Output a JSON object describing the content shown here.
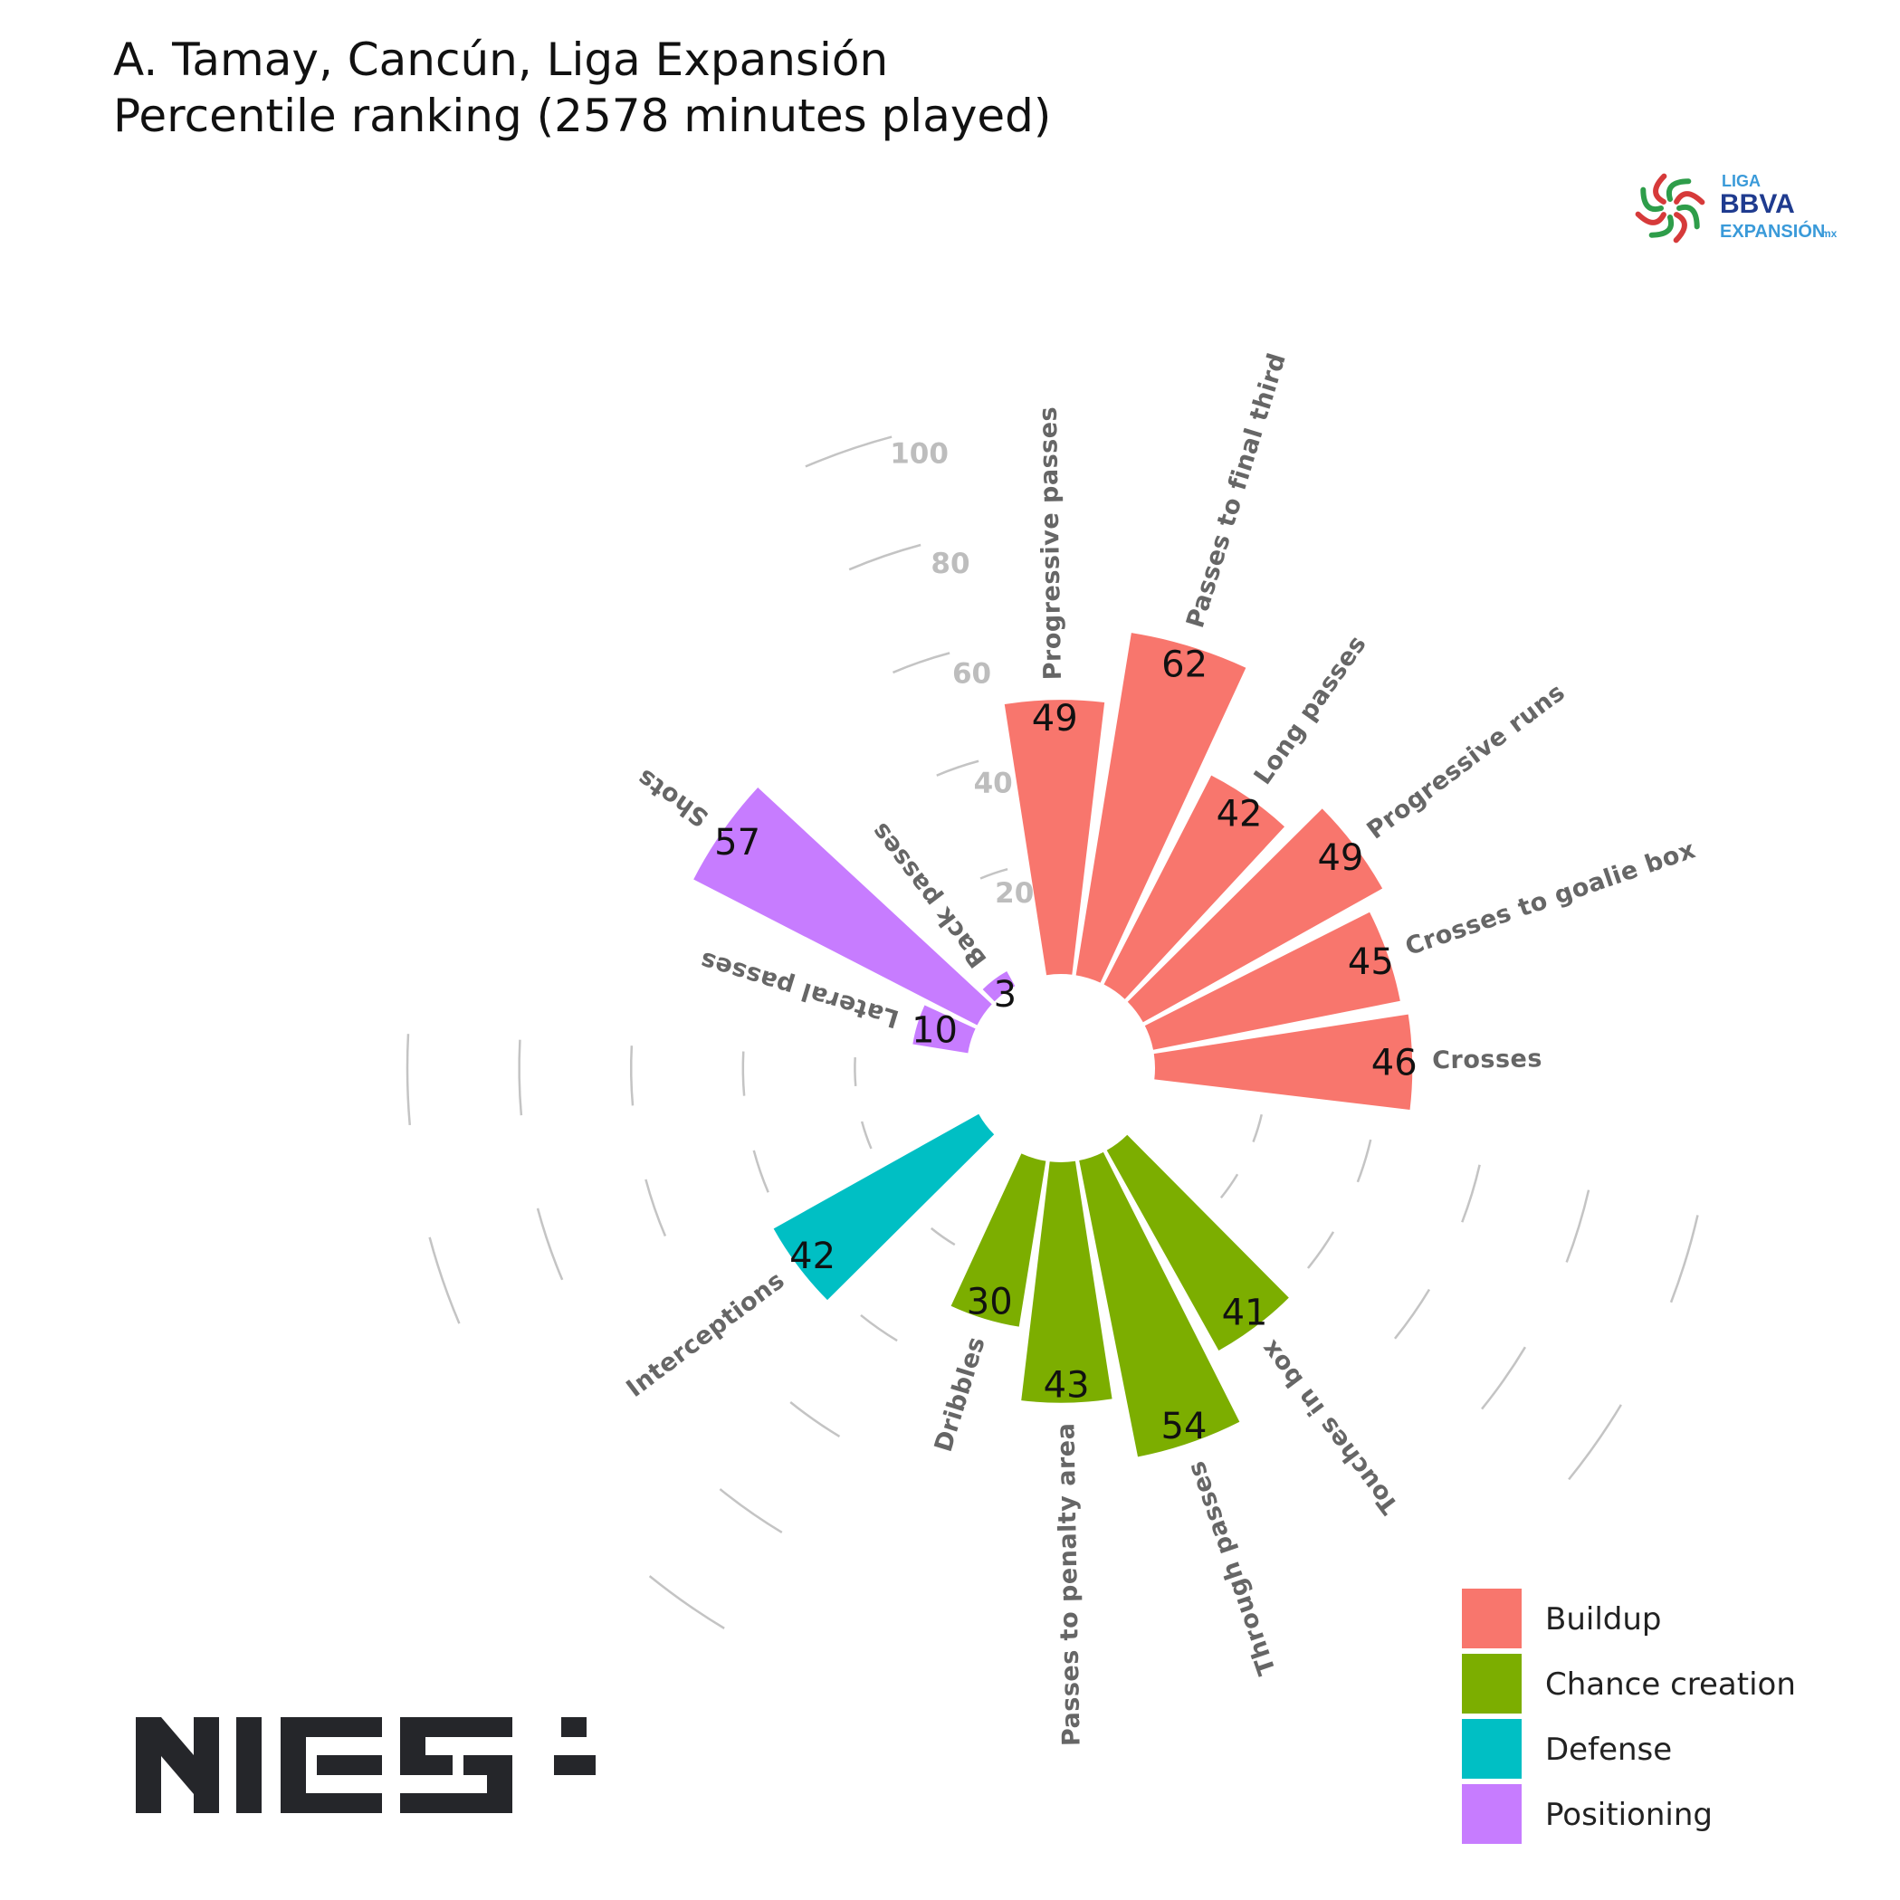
{
  "title_line1": "A. Tamay, Cancún, Liga Expansión",
  "title_line2": "Percentile ranking (2578 minutes played)",
  "league_logo": {
    "line1": "LIGA",
    "line2": "BBVA",
    "line3": "EXPANSIÓN",
    "suffix": "mx"
  },
  "brand_logo": "NIES",
  "chart_data": {
    "type": "bar",
    "subtype": "polar-percentile",
    "title": "A. Tamay, Cancún, Liga Expansión",
    "subtitle": "Percentile ranking (2578 minutes played)",
    "ylim": [
      0,
      100
    ],
    "ring_ticks": [
      20,
      40,
      60,
      80,
      100
    ],
    "categories": [
      "Progressive passes",
      "Passes to final third",
      "Long passes",
      "Progressive runs",
      "Crosses to goalie box",
      "Crosses",
      "",
      "",
      "Touches in box",
      "Through passes",
      "Passes to penalty area",
      "Dribbles",
      "",
      "Interceptions",
      "",
      "",
      "Lateral passes",
      "Shots",
      "Back passes",
      ""
    ],
    "values": [
      49,
      62,
      42,
      49,
      45,
      46,
      null,
      null,
      41,
      54,
      43,
      30,
      null,
      42,
      null,
      null,
      10,
      57,
      3,
      null
    ],
    "groups": [
      "Buildup",
      "Buildup",
      "Buildup",
      "Buildup",
      "Buildup",
      "Buildup",
      "",
      "",
      "Chance creation",
      "Chance creation",
      "Chance creation",
      "Chance creation",
      "",
      "Defense",
      "",
      "",
      "Positioning",
      "Positioning",
      "Positioning",
      ""
    ],
    "legend": {
      "position": "bottom-right",
      "entries": [
        {
          "name": "Buildup",
          "color": "#F8766D"
        },
        {
          "name": "Chance creation",
          "color": "#7CAE00"
        },
        {
          "name": "Defense",
          "color": "#00BFC4"
        },
        {
          "name": "Positioning",
          "color": "#C77CFF"
        }
      ]
    },
    "grid": false
  }
}
